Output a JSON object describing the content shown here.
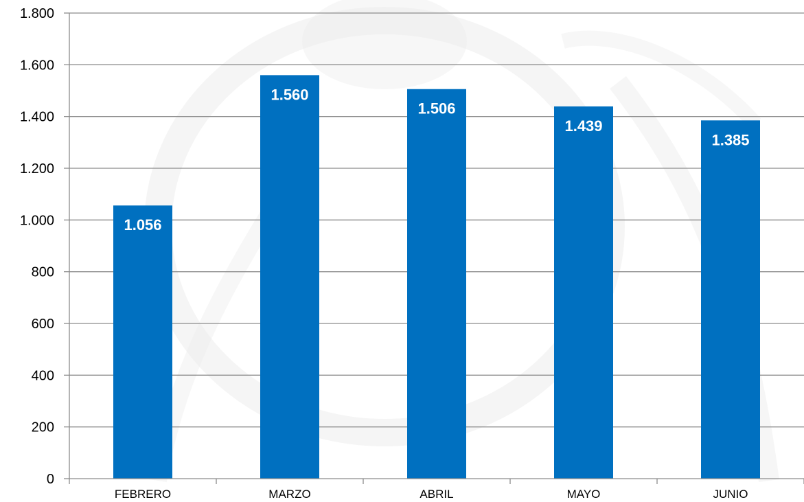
{
  "colors": {
    "bar": "#0070C0",
    "grid": "#8C8C8C",
    "axis": "#8C8C8C",
    "data_label": "#FFFFFF",
    "background_watermark": "#EDEDED"
  },
  "chart_data": {
    "type": "bar",
    "categories": [
      "FEBRERO",
      "MARZO",
      "ABRIL",
      "MAYO",
      "JUNIO"
    ],
    "values": [
      1056,
      1560,
      1506,
      1439,
      1385
    ],
    "data_labels": [
      "1.056",
      "1.560",
      "1.506",
      "1.439",
      "1.385"
    ],
    "title": "",
    "xlabel": "",
    "ylabel": "",
    "ylim": [
      0,
      1800
    ],
    "yticks": [
      0,
      200,
      400,
      600,
      800,
      1000,
      1200,
      1400,
      1600,
      1800
    ],
    "ytick_labels": [
      "0",
      "200",
      "400",
      "600",
      "800",
      "1.000",
      "1.200",
      "1.400",
      "1.600",
      "1.800"
    ],
    "grid": true,
    "legend": "none",
    "background": "faded engraved watermark"
  }
}
